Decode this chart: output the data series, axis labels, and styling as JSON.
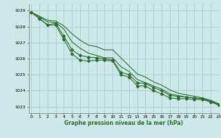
{
  "background_color": "#cce8e8",
  "grid_color": "#aad0d0",
  "line_color": "#2d6e2d",
  "xlabel": "Graphe pression niveau de la mer (hPa)",
  "ylim": [
    1022.6,
    1029.4
  ],
  "xlim": [
    -0.3,
    23
  ],
  "yticks": [
    1023,
    1024,
    1025,
    1026,
    1027,
    1028,
    1029
  ],
  "xticks": [
    0,
    1,
    2,
    3,
    4,
    5,
    6,
    7,
    8,
    9,
    10,
    11,
    12,
    13,
    14,
    15,
    16,
    17,
    18,
    19,
    20,
    21,
    22,
    23
  ],
  "series": [
    [
      1028.9,
      1028.5,
      1028.1,
      1028.1,
      1027.2,
      1026.3,
      1025.9,
      1025.85,
      1025.9,
      1025.9,
      1025.85,
      1025.0,
      1024.85,
      1024.3,
      1024.3,
      1024.0,
      1023.8,
      1023.55,
      1023.5,
      1023.5,
      1023.45,
      1023.45,
      1023.3,
      1023.1
    ],
    [
      1028.9,
      1028.5,
      1028.1,
      1028.2,
      1027.4,
      1026.55,
      1026.2,
      1026.1,
      1026.05,
      1026.0,
      1025.9,
      1025.15,
      1025.0,
      1024.5,
      1024.45,
      1024.2,
      1024.0,
      1023.7,
      1023.65,
      1023.6,
      1023.55,
      1023.5,
      1023.35,
      1023.1
    ],
    [
      1028.9,
      1028.6,
      1028.3,
      1028.25,
      1027.85,
      1027.05,
      1026.65,
      1026.35,
      1026.2,
      1026.05,
      1026.05,
      1025.5,
      1025.2,
      1024.7,
      1024.5,
      1024.3,
      1024.1,
      1023.8,
      1023.7,
      1023.6,
      1023.55,
      1023.5,
      1023.35,
      1023.15
    ],
    [
      1028.9,
      1028.65,
      1028.4,
      1028.35,
      1028.05,
      1027.55,
      1027.15,
      1026.85,
      1026.75,
      1026.55,
      1026.55,
      1026.05,
      1025.55,
      1025.05,
      1024.85,
      1024.55,
      1024.35,
      1024.05,
      1023.85,
      1023.75,
      1023.65,
      1023.55,
      1023.4,
      1023.2
    ]
  ]
}
